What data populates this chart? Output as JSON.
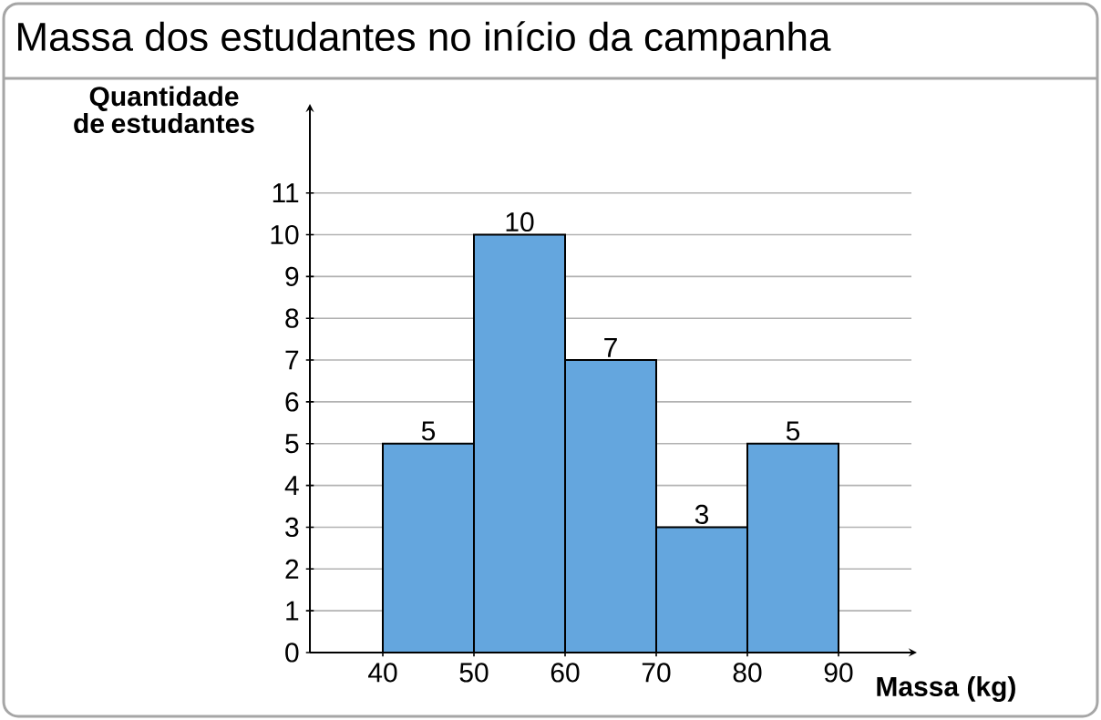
{
  "chart_data": {
    "type": "histogram",
    "title": "Massa dos estudantes no início da campanha",
    "xlabel": "Massa (kg)",
    "ylabel": "Quantidade de estudantes",
    "bins": [
      40,
      50,
      60,
      70,
      80,
      90
    ],
    "values": [
      5,
      10,
      7,
      3,
      5
    ],
    "color": "#64a6de",
    "data_labels": true,
    "grid": "y",
    "xlim": [
      32,
      98
    ],
    "ylim": [
      0,
      13
    ],
    "xticks": [
      40,
      50,
      60,
      70,
      80,
      90
    ],
    "yticks": [
      0,
      1,
      2,
      3,
      4,
      5,
      6,
      7,
      8,
      9,
      10,
      11
    ]
  }
}
